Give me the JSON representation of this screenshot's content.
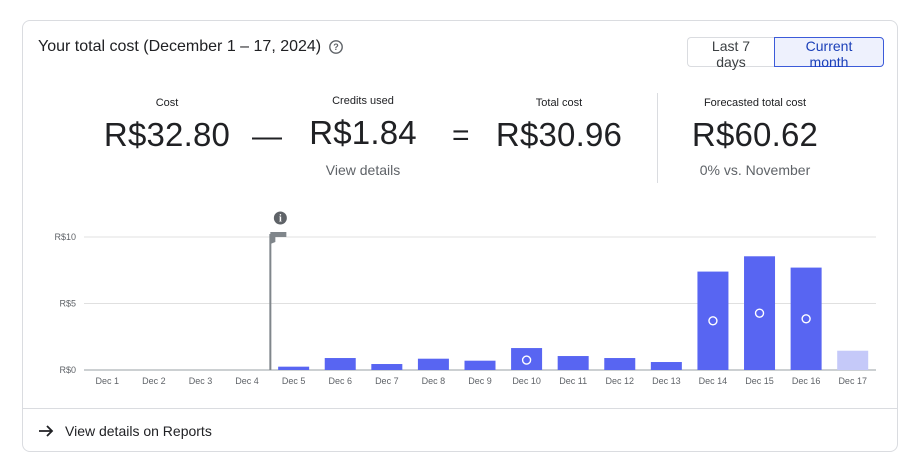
{
  "header": {
    "title": "Your total cost (December 1 – 17, 2024)",
    "range_buttons": [
      "Last 7 days",
      "Current month"
    ],
    "active_range": "Current month"
  },
  "metrics": {
    "cost": {
      "label": "Cost",
      "value": "R$32.80"
    },
    "minus": "—",
    "credits": {
      "label": "Credits used",
      "value": "R$1.84",
      "link": "View details"
    },
    "equals": "=",
    "total": {
      "label": "Total cost",
      "value": "R$30.96"
    },
    "forecast": {
      "label": "Forecasted total cost",
      "value": "R$60.62",
      "comparison": "0% vs. November"
    }
  },
  "chart_data": {
    "type": "bar",
    "categories": [
      "Dec 1",
      "Dec 2",
      "Dec 3",
      "Dec 4",
      "Dec 5",
      "Dec 6",
      "Dec 7",
      "Dec 8",
      "Dec 9",
      "Dec 10",
      "Dec 11",
      "Dec 12",
      "Dec 13",
      "Dec 14",
      "Dec 15",
      "Dec 16",
      "Dec 17"
    ],
    "values": [
      0,
      0,
      0,
      0,
      0.25,
      0.9,
      0.45,
      0.85,
      0.7,
      1.65,
      1.05,
      0.9,
      0.6,
      7.4,
      8.55,
      7.7,
      1.45
    ],
    "forecast_categories": [
      "Dec 17"
    ],
    "annotated_categories": [
      "Dec 10",
      "Dec 14",
      "Dec 15",
      "Dec 16"
    ],
    "marker_category": "Dec 5",
    "y_ticks": [
      "R$0",
      "R$5",
      "R$10"
    ],
    "ylim": [
      0,
      10
    ],
    "grid": true,
    "colors": {
      "bar": "#5865f2",
      "forecast": "#c5c9f9",
      "grid": "#e0e0e0",
      "marker": "#80868b"
    }
  },
  "footer": {
    "link": "View details on Reports"
  }
}
